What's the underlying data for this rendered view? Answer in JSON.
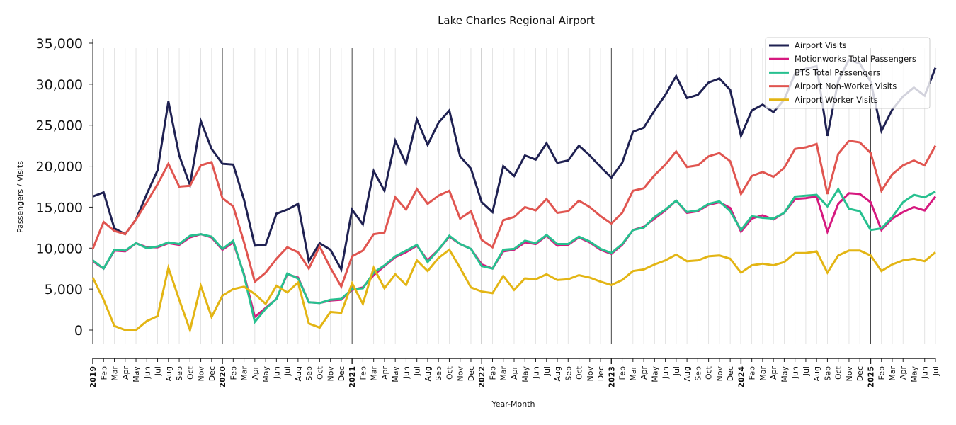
{
  "chart_data": {
    "type": "line",
    "title": "Lake Charles Regional Airport",
    "xlabel": "Year-Month",
    "ylabel": "Passengers / Visits",
    "ylim": [
      -1500,
      35500
    ],
    "yticks": [
      0,
      5000,
      10000,
      15000,
      20000,
      25000,
      30000,
      35000
    ],
    "ytick_labels": [
      "0",
      "5,000",
      "10,000",
      "15,000",
      "20,000",
      "25,000",
      "30,000",
      "35,000"
    ],
    "grid": "vertical-monthly",
    "legend_position": "top-right",
    "x": [
      "2019",
      "Feb",
      "Mar",
      "Apr",
      "May",
      "Jun",
      "Jul",
      "Aug",
      "Sep",
      "Oct",
      "Nov",
      "Dec",
      "2020",
      "Feb",
      "Mar",
      "Apr",
      "May",
      "Jun",
      "Jul",
      "Aug",
      "Sep",
      "Oct",
      "Nov",
      "Dec",
      "2021",
      "Feb",
      "Mar",
      "Apr",
      "May",
      "Jun",
      "Jul",
      "Aug",
      "Sep",
      "Oct",
      "Nov",
      "Dec",
      "2022",
      "Feb",
      "Mar",
      "Apr",
      "May",
      "Jun",
      "Jul",
      "Aug",
      "Sep",
      "Oct",
      "Nov",
      "Dec",
      "2023",
      "Feb",
      "Mar",
      "Apr",
      "May",
      "Jun",
      "Jul",
      "Aug",
      "Sep",
      "Oct",
      "Nov",
      "Dec",
      "2024",
      "Feb",
      "Mar",
      "Apr",
      "May",
      "Jun",
      "Jul",
      "Aug",
      "Sep",
      "Oct",
      "Nov",
      "Dec",
      "2025",
      "Feb",
      "Mar",
      "Apr",
      "May",
      "Jun",
      "Jul"
    ],
    "series": [
      {
        "name": "Airport Visits",
        "color": "#1f2152",
        "values": [
          16300,
          16800,
          12400,
          11700,
          13500,
          16600,
          19500,
          27900,
          21300,
          17700,
          25500,
          22100,
          20300,
          20200,
          15900,
          10300,
          10400,
          14200,
          14700,
          15400,
          8400,
          10600,
          9800,
          7400,
          14700,
          12900,
          19400,
          17000,
          23100,
          20300,
          25700,
          22600,
          25300,
          26800,
          21200,
          19700,
          15600,
          14400,
          20000,
          18800,
          21300,
          20800,
          22800,
          20400,
          20700,
          22500,
          21300,
          19900,
          18600,
          20400,
          24200,
          24700,
          26800,
          28700,
          31000,
          28300,
          28700,
          30200,
          30700,
          29300,
          23700,
          26800,
          27500,
          26600,
          28100,
          31300,
          31900,
          32200,
          23700,
          30400,
          33000,
          32500,
          30300,
          24300,
          26900,
          28500,
          29600,
          28600,
          32000
        ]
      },
      {
        "name": "Motionworks Total Passengers",
        "color": "#d6197f",
        "values": [
          8400,
          7500,
          9700,
          9600,
          10600,
          10100,
          10100,
          10600,
          10400,
          11300,
          11700,
          11300,
          9800,
          10700,
          6800,
          1600,
          2700,
          3800,
          6800,
          6400,
          3400,
          3300,
          3600,
          3700,
          4900,
          5200,
          6700,
          7800,
          8900,
          9500,
          10300,
          8500,
          9800,
          11400,
          10500,
          9900,
          8000,
          7500,
          9600,
          9800,
          10700,
          10500,
          11500,
          10300,
          10400,
          11300,
          10700,
          9800,
          9300,
          10400,
          12200,
          12600,
          13600,
          14600,
          15800,
          14300,
          14500,
          15300,
          15600,
          14900,
          12000,
          13600,
          14000,
          13500,
          14300,
          16000,
          16100,
          16300,
          12000,
          15400,
          16700,
          16600,
          15600,
          12200,
          13600,
          14400,
          15000,
          14600,
          16300
        ]
      },
      {
        "name": "BTS Total Passengers",
        "color": "#27c08f",
        "values": [
          8500,
          7500,
          9800,
          9700,
          10600,
          10000,
          10200,
          10700,
          10500,
          11500,
          11700,
          11400,
          9900,
          10900,
          6700,
          1000,
          2600,
          3800,
          6900,
          6300,
          3400,
          3300,
          3700,
          3800,
          5000,
          5100,
          7000,
          7900,
          9000,
          9700,
          10400,
          8300,
          9800,
          11500,
          10500,
          9900,
          7800,
          7500,
          9800,
          9900,
          10900,
          10600,
          11600,
          10500,
          10500,
          11400,
          10800,
          9900,
          9400,
          10500,
          12200,
          12500,
          13800,
          14700,
          15800,
          14400,
          14600,
          15400,
          15700,
          14500,
          12200,
          13900,
          13700,
          13600,
          14300,
          16300,
          16400,
          16500,
          15100,
          17200,
          14800,
          14500,
          12200,
          12400,
          13800,
          15600,
          16500,
          16200,
          16900
        ]
      },
      {
        "name": "Airport Non-Worker Visits",
        "color": "#e05550",
        "values": [
          9900,
          13200,
          12100,
          11700,
          13500,
          15600,
          17800,
          20300,
          17500,
          17600,
          20100,
          20500,
          16100,
          15100,
          10700,
          5900,
          7000,
          8700,
          10100,
          9500,
          7500,
          10200,
          7600,
          5300,
          9000,
          9700,
          11700,
          11900,
          16200,
          14700,
          17200,
          15400,
          16400,
          17000,
          13600,
          14500,
          11000,
          10100,
          13400,
          13800,
          15000,
          14600,
          16000,
          14300,
          14500,
          15800,
          15000,
          13900,
          13000,
          14300,
          17000,
          17300,
          18900,
          20200,
          21800,
          19900,
          20100,
          21200,
          21600,
          20600,
          16600,
          18800,
          19300,
          18700,
          19800,
          22100,
          22300,
          22700,
          16600,
          21500,
          23100,
          22900,
          21600,
          17000,
          19000,
          20100,
          20700,
          20100,
          22500
        ]
      },
      {
        "name": "Airport Worker Visits",
        "color": "#e3b514",
        "values": [
          6400,
          3700,
          500,
          0,
          0,
          1100,
          1700,
          7600,
          3700,
          0,
          5400,
          1600,
          4200,
          5000,
          5300,
          4400,
          3200,
          5400,
          4600,
          5800,
          800,
          300,
          2200,
          2100,
          5700,
          3200,
          7600,
          5100,
          6800,
          5500,
          8500,
          7200,
          8800,
          9800,
          7600,
          5200,
          4700,
          4500,
          6600,
          4900,
          6300,
          6200,
          6800,
          6100,
          6200,
          6700,
          6400,
          5900,
          5500,
          6100,
          7200,
          7400,
          8000,
          8500,
          9200,
          8400,
          8500,
          9000,
          9100,
          8700,
          7000,
          7900,
          8100,
          7900,
          8300,
          9400,
          9400,
          9600,
          7000,
          9100,
          9700,
          9700,
          9100,
          7200,
          8000,
          8500,
          8700,
          8400,
          9500
        ]
      }
    ]
  }
}
